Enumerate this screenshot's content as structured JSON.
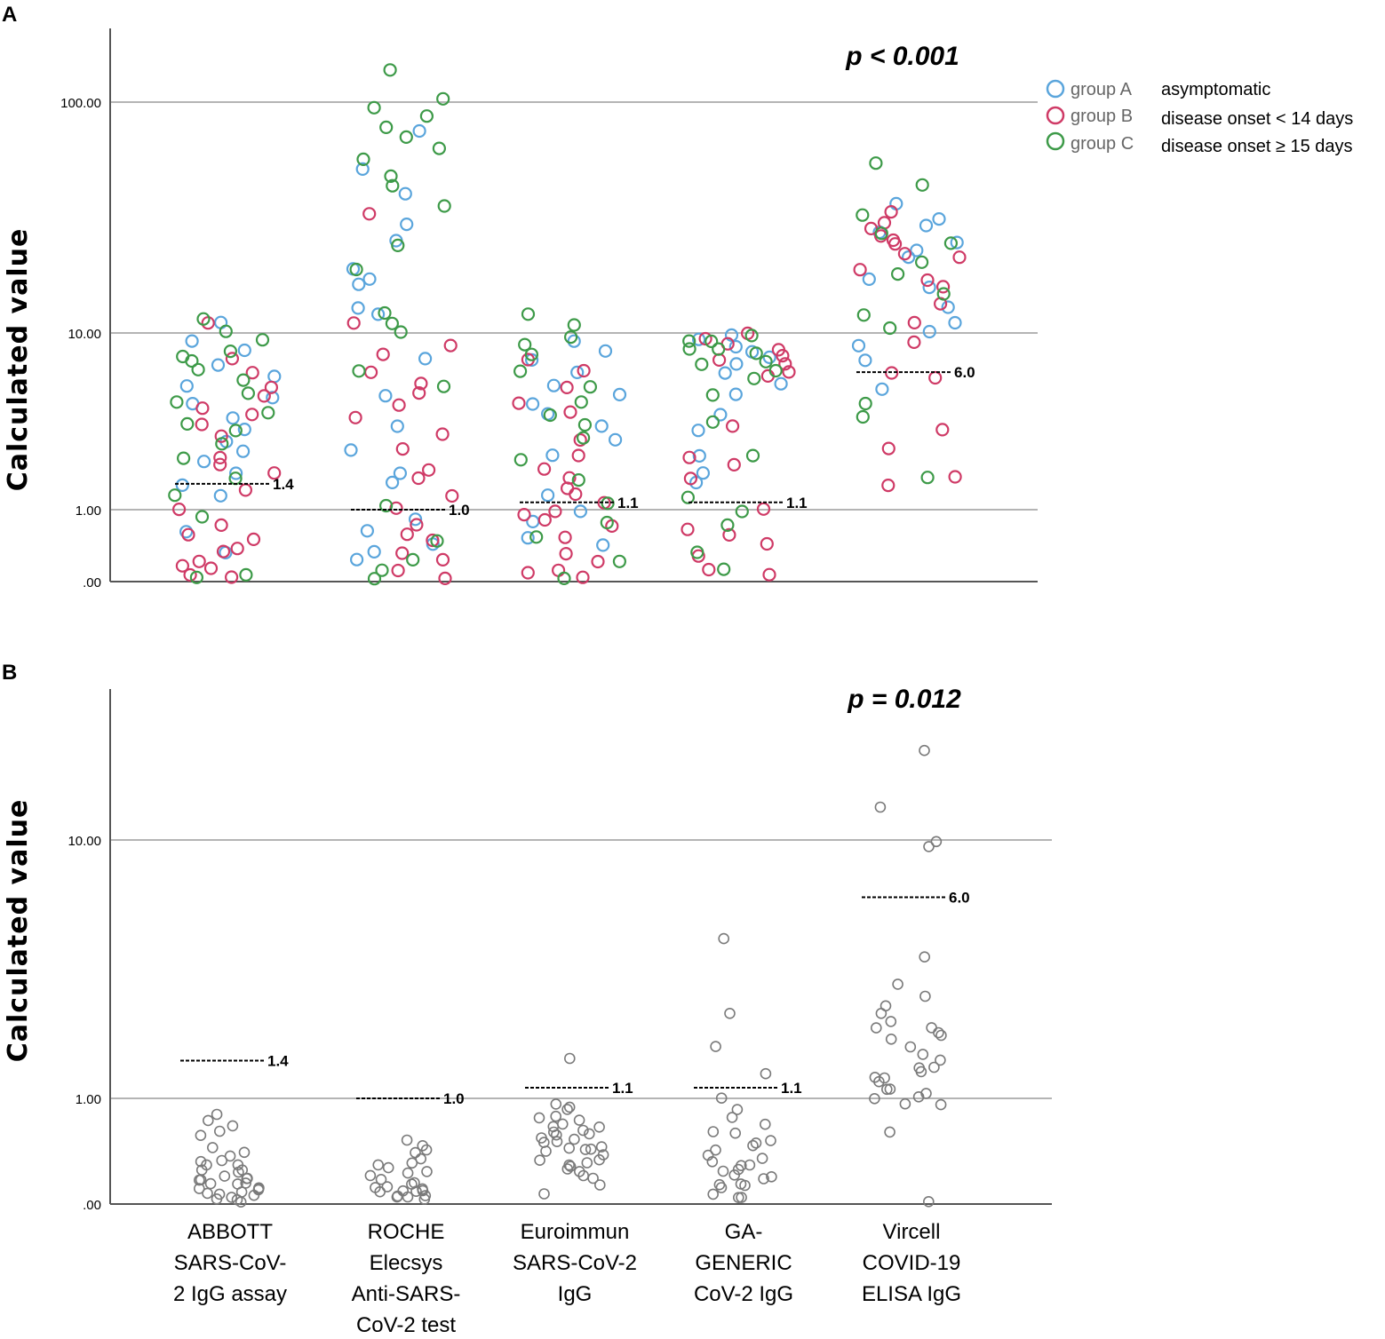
{
  "colors": {
    "group_a": "#5aa5dc",
    "group_b": "#cf3a66",
    "group_c": "#3d9a48",
    "single": "#7a7a7a",
    "grid": "#9b9b9b"
  },
  "categories": [
    "ABBOTT SARS-CoV-2 IgG assay",
    "ROCHE Elecsys Anti-SARS-CoV-2 test",
    "Euroimmun SARS-CoV-2 IgG",
    "GA-GENERIC CoV-2 IgG",
    "Vircell COVID-19 ELISA IgG"
  ],
  "category_lines": [
    [
      "ABBOTT",
      "SARS-CoV-",
      "2 IgG assay"
    ],
    [
      "ROCHE",
      "Elecsys",
      "Anti-SARS-",
      "CoV-2 test"
    ],
    [
      "Euroimmun",
      "SARS-CoV-2",
      "IgG"
    ],
    [
      "GA-",
      "GENERIC",
      "CoV-2 IgG"
    ],
    [
      "Vircell",
      "COVID-19",
      "ELISA IgG"
    ]
  ],
  "cutoffs": [
    {
      "value": 1.4,
      "label": "1.4"
    },
    {
      "value": 1.0,
      "label": "1.0"
    },
    {
      "value": 1.1,
      "label": "1.1"
    },
    {
      "value": 1.1,
      "label": "1.1"
    },
    {
      "value": 6.0,
      "label": "6.0"
    }
  ],
  "chart_data": [
    {
      "panel": "A",
      "type": "scatter",
      "title": "",
      "annotation": "p < 0.001",
      "xlabel": "",
      "ylabel": "Calculated value",
      "yscale": "log",
      "yticks": [
        0,
        1,
        10,
        100
      ],
      "yticklabels": [
        ".00",
        "1.00",
        "10.00",
        "100.00"
      ],
      "ylim": [
        0,
        200
      ],
      "legend": {
        "position": "top-right",
        "entries": [
          {
            "group": "group A",
            "description": "asymptomatic"
          },
          {
            "group": "group B",
            "description": "disease onset < 14 days"
          },
          {
            "group": "group C",
            "description": "disease onset ≥ 15 days"
          }
        ]
      },
      "series": [
        {
          "name": "ABBOTT",
          "A": [
            0.3,
            0.6,
            1.2,
            1.4,
            1.6,
            1.9,
            2.1,
            2.4,
            2.8,
            3.3,
            3.9,
            4.4,
            5.0,
            5.6,
            6.6,
            7.9,
            9.2,
            11.0
          ],
          "B": [
            0.02,
            0.05,
            0.1,
            0.15,
            0.2,
            0.3,
            0.35,
            0.5,
            0.55,
            0.7,
            1.0,
            1.3,
            1.6,
            1.8,
            2.0,
            2.6,
            3.0,
            3.4,
            3.8,
            4.5,
            5.0,
            6.0,
            7.0,
            11.0
          ],
          "C": [
            0.02,
            0.05,
            0.9,
            1.2,
            1.5,
            2.0,
            2.4,
            2.8,
            3.1,
            3.5,
            4.0,
            4.6,
            5.5,
            6.3,
            6.8,
            7.2,
            8.0,
            9.0,
            10.0,
            11.5
          ]
        },
        {
          "name": "ROCHE",
          "A": [
            0.2,
            0.3,
            0.4,
            0.6,
            0.8,
            1.4,
            1.6,
            2.2,
            3.0,
            4.5,
            7.2,
            12,
            13,
            16,
            17,
            19,
            25,
            30,
            40,
            52,
            75
          ],
          "B": [
            0.02,
            0.1,
            0.2,
            0.3,
            0.5,
            0.6,
            0.75,
            1.0,
            1.2,
            1.5,
            1.7,
            2.2,
            2.7,
            3.3,
            4.0,
            4.5,
            5.1,
            6.0,
            7.4,
            8.5,
            11,
            33
          ],
          "C": [
            0.02,
            0.1,
            0.2,
            0.45,
            1.05,
            5.0,
            6.0,
            10,
            11,
            12,
            19,
            24,
            35,
            43,
            47,
            57,
            62,
            70,
            77,
            87,
            95,
            105,
            140
          ]
        },
        {
          "name": "Euroimmun",
          "A": [
            0.4,
            0.5,
            0.8,
            1.0,
            1.2,
            2.0,
            2.5,
            3.0,
            3.5,
            4.0,
            4.5,
            5.0,
            6.0,
            7.0,
            8.0,
            9.0
          ],
          "B": [
            0.02,
            0.05,
            0.1,
            0.2,
            0.3,
            0.5,
            0.7,
            0.8,
            0.9,
            1.0,
            1.1,
            1.2,
            1.3,
            1.5,
            1.7,
            2.0,
            2.5,
            3.5,
            4.0,
            4.8,
            6.0,
            7.0
          ],
          "C": [
            0.02,
            0.2,
            0.5,
            0.8,
            1.1,
            1.5,
            1.9,
            2.5,
            3.0,
            3.5,
            4.0,
            5.0,
            6.0,
            7.5,
            8.5,
            9.5,
            11,
            12
          ]
        },
        {
          "name": "GA-GENERIC",
          "A": [
            1.4,
            1.6,
            2.0,
            2.8,
            3.5,
            4.5,
            5.2,
            6.0,
            6.6,
            7.2,
            7.8,
            8.5,
            9.2,
            9.6
          ],
          "B": [
            0.05,
            0.1,
            0.25,
            0.4,
            0.55,
            0.65,
            1.0,
            1.5,
            1.8,
            2.0,
            3.0,
            5.6,
            6.1,
            6.6,
            7.0,
            7.5,
            8.0,
            8.8,
            9.4,
            10.0
          ],
          "C": [
            0.1,
            0.3,
            0.7,
            0.95,
            1.2,
            2.0,
            3.2,
            4.5,
            5.5,
            6.0,
            6.5,
            7.0,
            7.5,
            8.0,
            8.3,
            8.8,
            9.0,
            9.5
          ]
        },
        {
          "name": "Vircell",
          "A": [
            4.8,
            7.0,
            8.5,
            10.2,
            11.0,
            13.0,
            15.5,
            17.0,
            21.5,
            23.0,
            25.0,
            27.0,
            29.0,
            31.0,
            36.0
          ],
          "B": [
            1.4,
            1.5,
            2.2,
            2.9,
            5.5,
            6.0,
            9.0,
            11.0,
            13.5,
            16.0,
            17.0,
            19.0,
            21.0,
            22.0,
            24.0,
            25.0,
            26.0,
            28.0,
            30.0,
            33.0
          ],
          "C": [
            1.5,
            3.3,
            4.0,
            10.5,
            12.0,
            15.0,
            18.0,
            20.0,
            24.5,
            27.0,
            32.0,
            44.0,
            55.0
          ]
        }
      ]
    },
    {
      "panel": "B",
      "type": "scatter",
      "title": "",
      "annotation": "p = 0.012",
      "xlabel": "",
      "ylabel": "Calculated value",
      "yscale": "log",
      "yticks": [
        0,
        1,
        10
      ],
      "yticklabels": [
        ".00",
        "1.00",
        "10.00"
      ],
      "ylim": [
        0,
        30
      ],
      "series": [
        {
          "name": "ABBOTT",
          "values": [
            0.01,
            0.02,
            0.03,
            0.04,
            0.05,
            0.06,
            0.07,
            0.08,
            0.09,
            0.1,
            0.11,
            0.12,
            0.13,
            0.14,
            0.15,
            0.16,
            0.17,
            0.19,
            0.21,
            0.23,
            0.25,
            0.27,
            0.29,
            0.32,
            0.35,
            0.38,
            0.42,
            0.55,
            0.6,
            0.65,
            0.75,
            0.8,
            0.02,
            0.04,
            0.06
          ]
        },
        {
          "name": "ROCHE",
          "values": [
            0.01,
            0.02,
            0.03,
            0.04,
            0.05,
            0.06,
            0.07,
            0.08,
            0.09,
            0.1,
            0.12,
            0.13,
            0.15,
            0.17,
            0.19,
            0.21,
            0.23,
            0.26,
            0.29,
            0.33,
            0.37,
            0.41,
            0.45,
            0.5,
            0.03,
            0.06
          ]
        },
        {
          "name": "Euroimmun",
          "values": [
            0.05,
            0.1,
            0.15,
            0.2,
            0.22,
            0.25,
            0.28,
            0.3,
            0.32,
            0.35,
            0.38,
            0.4,
            0.42,
            0.45,
            0.48,
            0.5,
            0.52,
            0.55,
            0.58,
            0.6,
            0.62,
            0.65,
            0.68,
            0.72,
            0.75,
            0.8,
            0.85,
            0.9,
            0.95,
            1.45,
            0.3,
            0.42,
            0.55,
            0.18,
            0.65
          ]
        },
        {
          "name": "GA-GENERIC",
          "values": [
            0.02,
            0.05,
            0.08,
            0.1,
            0.12,
            0.15,
            0.18,
            0.2,
            0.23,
            0.25,
            0.28,
            0.3,
            0.33,
            0.36,
            0.4,
            0.44,
            0.48,
            0.52,
            0.57,
            0.62,
            0.7,
            0.78,
            0.85,
            1.0,
            1.25,
            1.6,
            2.1,
            4.2,
            0.03,
            0.11,
            0.16
          ]
        },
        {
          "name": "Vircell",
          "values": [
            0.01,
            0.6,
            0.9,
            0.95,
            1.0,
            1.0,
            1.05,
            1.1,
            1.1,
            1.15,
            1.2,
            1.2,
            1.25,
            1.3,
            1.3,
            1.4,
            1.5,
            1.6,
            1.7,
            1.75,
            1.8,
            1.85,
            1.9,
            2.0,
            2.1,
            2.3,
            2.5,
            2.8,
            3.5,
            9.5,
            10.0,
            13.5,
            22.0
          ]
        }
      ]
    }
  ]
}
